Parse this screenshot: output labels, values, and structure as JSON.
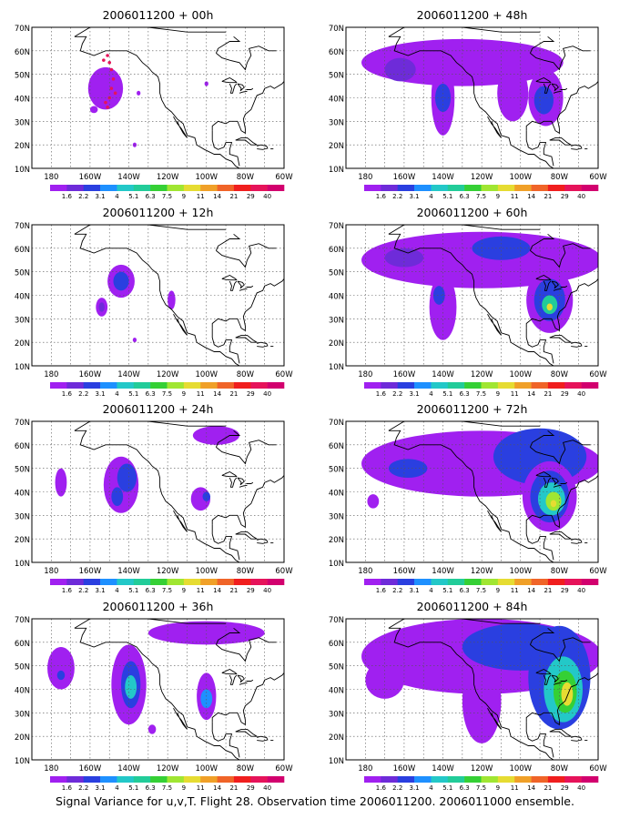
{
  "figure": {
    "caption": "Signal Variance for u,v,T. Flight 28. Observation time 2006011200. 2006011000 ensemble."
  },
  "axes": {
    "lat_labels": [
      "70N",
      "60N",
      "50N",
      "40N",
      "30N",
      "20N",
      "10N"
    ],
    "lon_labels": [
      "180",
      "160W",
      "140W",
      "120W",
      "100W",
      "80W",
      "60W"
    ]
  },
  "colorbar": {
    "labels": [
      "1.6",
      "2.2",
      "3.1",
      "4",
      "5.1",
      "6.3",
      "7.5",
      "9",
      "11",
      "14",
      "21",
      "29",
      "40"
    ],
    "colors": [
      "#a020f0",
      "#6e2bd9",
      "#2a3fe0",
      "#1e90ff",
      "#23c8c8",
      "#22cc99",
      "#35d035",
      "#a0e632",
      "#e6dc32",
      "#f0a028",
      "#f06428",
      "#f01e1e",
      "#e6135a",
      "#d2006e"
    ]
  },
  "panels": [
    {
      "title": "2006011200 + 00h",
      "blobs": [
        {
          "lon": -152,
          "lat": 44,
          "rlon": 9,
          "rlat": 9,
          "level": 0
        },
        {
          "lon": -158,
          "lat": 35,
          "rlon": 2,
          "rlat": 1.5,
          "level": 0
        },
        {
          "lon": -135,
          "lat": 42,
          "rlon": 1,
          "rlat": 1,
          "level": 0
        },
        {
          "lon": -137,
          "lat": 20,
          "rlon": 1,
          "rlat": 1,
          "level": 0
        },
        {
          "lon": -100,
          "lat": 46,
          "rlon": 1,
          "rlat": 1,
          "level": 0
        }
      ],
      "dots": [
        {
          "lon": -151,
          "lat": 58
        },
        {
          "lon": -150,
          "lat": 55
        },
        {
          "lon": -149,
          "lat": 52
        },
        {
          "lon": -148,
          "lat": 48
        },
        {
          "lon": -149,
          "lat": 44
        },
        {
          "lon": -150,
          "lat": 40
        },
        {
          "lon": -151,
          "lat": 36
        },
        {
          "lon": -153,
          "lat": 56
        },
        {
          "lon": -147,
          "lat": 42
        },
        {
          "lon": -152,
          "lat": 38
        }
      ]
    },
    {
      "title": "2006011200 + 12h",
      "blobs": [
        {
          "lon": -144,
          "lat": 46,
          "rlon": 7,
          "rlat": 7,
          "level": 0
        },
        {
          "lon": -144,
          "lat": 46,
          "rlon": 4,
          "rlat": 4,
          "level": 2
        },
        {
          "lon": -154,
          "lat": 35,
          "rlon": 3,
          "rlat": 4,
          "level": 0
        },
        {
          "lon": -154,
          "lat": 35,
          "rlon": 1.5,
          "rlat": 2,
          "level": 1
        },
        {
          "lon": -118,
          "lat": 38,
          "rlon": 2,
          "rlat": 4,
          "level": 0
        },
        {
          "lon": -137,
          "lat": 21,
          "rlon": 1,
          "rlat": 1,
          "level": 0
        }
      ]
    },
    {
      "title": "2006011200 + 24h",
      "blobs": [
        {
          "lon": -144,
          "lat": 43,
          "rlon": 9,
          "rlat": 12,
          "level": 0
        },
        {
          "lon": -141,
          "lat": 46,
          "rlon": 5,
          "rlat": 6,
          "level": 2
        },
        {
          "lon": -146,
          "lat": 38,
          "rlon": 3,
          "rlat": 4,
          "level": 2
        },
        {
          "lon": -175,
          "lat": 44,
          "rlon": 3,
          "rlat": 6,
          "level": 0
        },
        {
          "lon": -103,
          "lat": 37,
          "rlon": 5,
          "rlat": 5,
          "level": 0
        },
        {
          "lon": -100,
          "lat": 38,
          "rlon": 2,
          "rlat": 2,
          "level": 2
        },
        {
          "lon": -95,
          "lat": 64,
          "rlon": 12,
          "rlat": 4,
          "level": 0
        }
      ]
    },
    {
      "title": "2006011200 + 36h",
      "blobs": [
        {
          "lon": -140,
          "lat": 42,
          "rlon": 9,
          "rlat": 17,
          "level": 0
        },
        {
          "lon": -139,
          "lat": 42,
          "rlon": 5,
          "rlat": 10,
          "level": 2
        },
        {
          "lon": -139,
          "lat": 41,
          "rlon": 3,
          "rlat": 5,
          "level": 4
        },
        {
          "lon": -175,
          "lat": 49,
          "rlon": 7,
          "rlat": 9,
          "level": 0
        },
        {
          "lon": -175,
          "lat": 46,
          "rlon": 2,
          "rlat": 2,
          "level": 2
        },
        {
          "lon": -100,
          "lat": 37,
          "rlon": 5,
          "rlat": 10,
          "level": 0
        },
        {
          "lon": -100,
          "lat": 36,
          "rlon": 3,
          "rlat": 4,
          "level": 3
        },
        {
          "lon": -100,
          "lat": 64,
          "rlon": 30,
          "rlat": 5,
          "level": 0
        },
        {
          "lon": -128,
          "lat": 23,
          "rlon": 2,
          "rlat": 2,
          "level": 0
        }
      ]
    },
    {
      "title": "2006011200 + 48h",
      "blobs": [
        {
          "lon": -130,
          "lat": 55,
          "rlon": 52,
          "rlat": 10,
          "level": 0
        },
        {
          "lon": -140,
          "lat": 40,
          "rlon": 6,
          "rlat": 16,
          "level": 0
        },
        {
          "lon": -140,
          "lat": 40,
          "rlon": 4,
          "rlat": 6,
          "level": 2
        },
        {
          "lon": -104,
          "lat": 42,
          "rlon": 8,
          "rlat": 12,
          "level": 0
        },
        {
          "lon": -87,
          "lat": 40,
          "rlon": 9,
          "rlat": 12,
          "level": 0
        },
        {
          "lon": -88,
          "lat": 39,
          "rlon": 5,
          "rlat": 6,
          "level": 2
        },
        {
          "lon": -162,
          "lat": 52,
          "rlon": 8,
          "rlat": 5,
          "level": 1
        }
      ]
    },
    {
      "title": "2006011200 + 60h",
      "blobs": [
        {
          "lon": -120,
          "lat": 55,
          "rlon": 62,
          "rlat": 12,
          "level": 0
        },
        {
          "lon": -140,
          "lat": 35,
          "rlon": 7,
          "rlat": 14,
          "level": 0
        },
        {
          "lon": -142,
          "lat": 40,
          "rlon": 3,
          "rlat": 4,
          "level": 2
        },
        {
          "lon": -85,
          "lat": 38,
          "rlon": 12,
          "rlat": 14,
          "level": 0
        },
        {
          "lon": -85,
          "lat": 38,
          "rlon": 8,
          "rlat": 9,
          "level": 2
        },
        {
          "lon": -85,
          "lat": 36,
          "rlon": 4,
          "rlat": 4,
          "level": 5
        },
        {
          "lon": -85,
          "lat": 35,
          "rlon": 1.5,
          "rlat": 1.5,
          "level": 8
        },
        {
          "lon": -110,
          "lat": 60,
          "rlon": 15,
          "rlat": 5,
          "level": 2
        },
        {
          "lon": -160,
          "lat": 56,
          "rlon": 10,
          "rlat": 4,
          "level": 1
        }
      ]
    },
    {
      "title": "2006011200 + 72h",
      "blobs": [
        {
          "lon": -120,
          "lat": 52,
          "rlon": 62,
          "rlat": 14,
          "level": 0
        },
        {
          "lon": -90,
          "lat": 55,
          "rlon": 24,
          "rlat": 12,
          "level": 2
        },
        {
          "lon": -85,
          "lat": 38,
          "rlon": 14,
          "rlat": 15,
          "level": 0
        },
        {
          "lon": -85,
          "lat": 38,
          "rlon": 10,
          "rlat": 11,
          "level": 2
        },
        {
          "lon": -84,
          "lat": 37,
          "rlon": 7,
          "rlat": 7,
          "level": 4
        },
        {
          "lon": -83,
          "lat": 36,
          "rlon": 4,
          "rlat": 4,
          "level": 7
        },
        {
          "lon": -83,
          "lat": 35,
          "rlon": 1.5,
          "rlat": 1.5,
          "level": 8
        },
        {
          "lon": -176,
          "lat": 36,
          "rlon": 3,
          "rlat": 3,
          "level": 0
        },
        {
          "lon": -158,
          "lat": 50,
          "rlon": 10,
          "rlat": 4,
          "level": 2
        }
      ]
    },
    {
      "title": "2006011200 + 84h",
      "blobs": [
        {
          "lon": -120,
          "lat": 54,
          "rlon": 62,
          "rlat": 16,
          "level": 0
        },
        {
          "lon": -120,
          "lat": 35,
          "rlon": 10,
          "rlat": 18,
          "level": 0
        },
        {
          "lon": -100,
          "lat": 58,
          "rlon": 30,
          "rlat": 10,
          "level": 2
        },
        {
          "lon": -80,
          "lat": 45,
          "rlon": 16,
          "rlat": 22,
          "level": 2
        },
        {
          "lon": -78,
          "lat": 40,
          "rlon": 10,
          "rlat": 14,
          "level": 4
        },
        {
          "lon": -77,
          "lat": 39,
          "rlon": 6,
          "rlat": 9,
          "level": 6
        },
        {
          "lon": -76,
          "lat": 38,
          "rlon": 3,
          "rlat": 5,
          "level": 8
        },
        {
          "lon": -170,
          "lat": 44,
          "rlon": 10,
          "rlat": 8,
          "level": 0
        }
      ]
    }
  ]
}
